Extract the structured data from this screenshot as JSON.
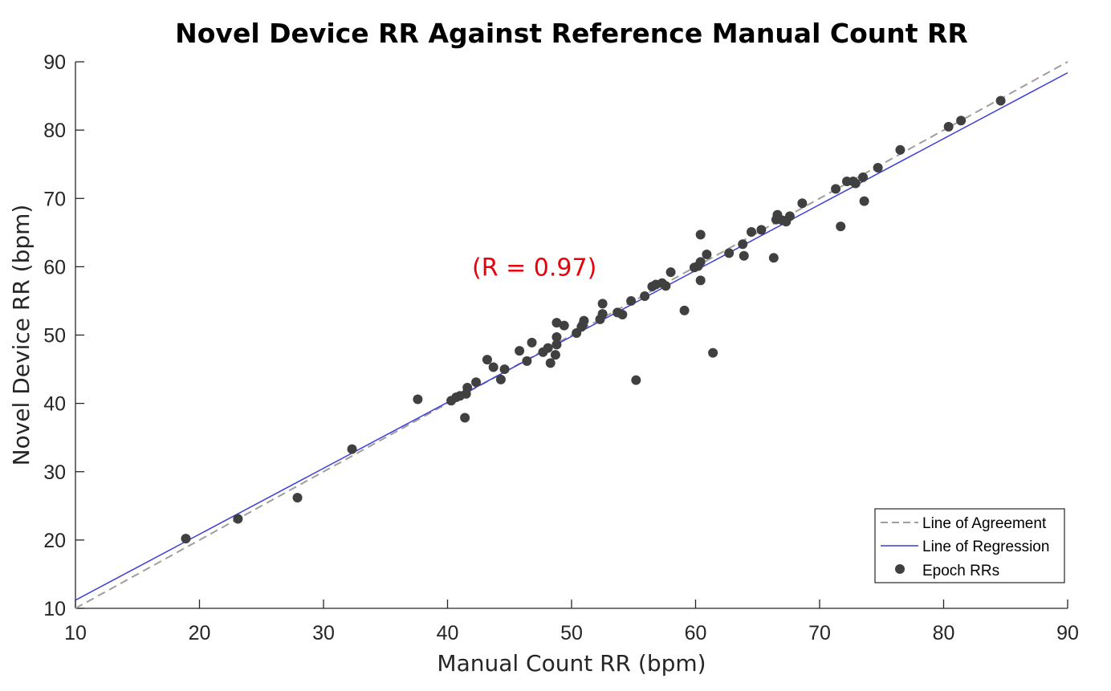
{
  "chart_data": {
    "type": "scatter",
    "title": "Novel Device RR Against Reference Manual Count RR",
    "xlabel": "Manual Count RR (bpm)",
    "ylabel": "Novel Device RR (bpm)",
    "xlim": [
      10,
      90
    ],
    "ylim": [
      10,
      90
    ],
    "xticks": [
      "10",
      "20",
      "30",
      "40",
      "50",
      "60",
      "70",
      "80",
      "90"
    ],
    "yticks": [
      "10",
      "20",
      "30",
      "40",
      "50",
      "60",
      "70",
      "80",
      "90"
    ],
    "annotation": {
      "text": "(R = 0.97)",
      "x": 47,
      "y": 60,
      "color": "#e8000b"
    },
    "legend": {
      "position": "bottom-right",
      "entries": [
        "Line of Agreement",
        "Line of Regression",
        "Epoch RRs"
      ]
    },
    "series": [
      {
        "name": "Line of Agreement",
        "kind": "line",
        "style": "dashed",
        "color": "#9e9e9e",
        "x": [
          10,
          90
        ],
        "y": [
          10,
          90
        ]
      },
      {
        "name": "Line of Regression",
        "kind": "line",
        "style": "solid",
        "color": "#3c3cdc",
        "x": [
          10,
          90
        ],
        "y": [
          11.2,
          88.4
        ]
      },
      {
        "name": "Epoch RRs",
        "kind": "scatter",
        "color": "#404040",
        "points": [
          [
            18.9,
            20.2
          ],
          [
            23.1,
            23.1
          ],
          [
            27.9,
            26.2
          ],
          [
            32.3,
            33.3
          ],
          [
            37.6,
            40.6
          ],
          [
            40.3,
            40.4
          ],
          [
            40.7,
            40.9
          ],
          [
            41.0,
            41.1
          ],
          [
            41.4,
            37.9
          ],
          [
            41.5,
            41.4
          ],
          [
            41.6,
            42.3
          ],
          [
            42.3,
            43.1
          ],
          [
            43.2,
            46.4
          ],
          [
            43.7,
            45.3
          ],
          [
            44.3,
            43.5
          ],
          [
            44.6,
            45.0
          ],
          [
            45.8,
            47.7
          ],
          [
            46.4,
            46.2
          ],
          [
            46.8,
            48.9
          ],
          [
            47.7,
            47.5
          ],
          [
            48.1,
            48.1
          ],
          [
            48.3,
            45.9
          ],
          [
            48.7,
            47.1
          ],
          [
            48.8,
            48.6
          ],
          [
            48.8,
            49.7
          ],
          [
            48.8,
            51.8
          ],
          [
            49.4,
            51.4
          ],
          [
            50.4,
            50.3
          ],
          [
            50.8,
            51.2
          ],
          [
            50.9,
            51.5
          ],
          [
            51.0,
            52.1
          ],
          [
            52.3,
            52.3
          ],
          [
            52.5,
            53.1
          ],
          [
            52.5,
            54.6
          ],
          [
            53.7,
            53.3
          ],
          [
            54.1,
            53.0
          ],
          [
            54.8,
            55.0
          ],
          [
            55.2,
            43.4
          ],
          [
            55.9,
            55.7
          ],
          [
            56.5,
            57.1
          ],
          [
            56.8,
            57.4
          ],
          [
            57.3,
            57.6
          ],
          [
            57.6,
            57.2
          ],
          [
            58.0,
            59.2
          ],
          [
            59.1,
            53.6
          ],
          [
            59.9,
            59.9
          ],
          [
            60.2,
            60.1
          ],
          [
            60.4,
            58.0
          ],
          [
            60.4,
            60.7
          ],
          [
            60.4,
            64.7
          ],
          [
            60.9,
            61.8
          ],
          [
            61.4,
            47.4
          ],
          [
            62.7,
            62.0
          ],
          [
            63.8,
            63.3
          ],
          [
            63.9,
            61.6
          ],
          [
            64.5,
            65.1
          ],
          [
            65.3,
            65.4
          ],
          [
            66.3,
            61.3
          ],
          [
            66.5,
            66.9
          ],
          [
            66.6,
            67.6
          ],
          [
            67.0,
            66.8
          ],
          [
            67.3,
            66.6
          ],
          [
            67.6,
            67.4
          ],
          [
            68.6,
            69.3
          ],
          [
            71.3,
            71.4
          ],
          [
            71.7,
            65.9
          ],
          [
            72.2,
            72.5
          ],
          [
            72.7,
            72.5
          ],
          [
            72.9,
            72.2
          ],
          [
            73.5,
            73.1
          ],
          [
            73.6,
            69.6
          ],
          [
            74.7,
            74.5
          ],
          [
            76.5,
            77.1
          ],
          [
            80.4,
            80.5
          ],
          [
            81.4,
            81.4
          ],
          [
            84.6,
            84.3
          ]
        ]
      }
    ]
  }
}
